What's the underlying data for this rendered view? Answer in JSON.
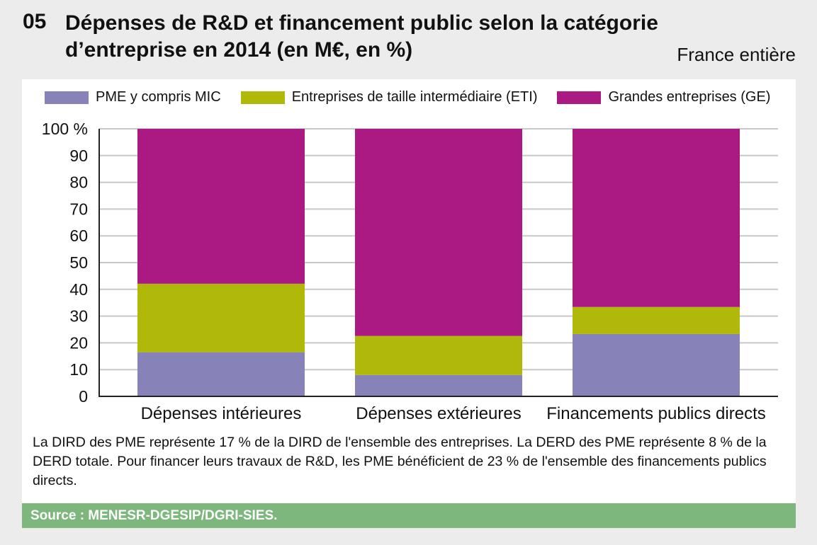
{
  "header": {
    "number": "05",
    "title": "Dépenses de R&D et financement public selon la catégorie d’entreprise en 2014 (en M€, en %)",
    "scope": "France entière"
  },
  "chart_data": {
    "type": "bar",
    "stacked": true,
    "categories": [
      "Dépenses intérieures",
      "Dépenses extérieures",
      "Financements publics directs"
    ],
    "series": [
      {
        "name": "PME y compris MIC",
        "color": "#8782b8",
        "values": [
          16.5,
          8,
          23.3
        ]
      },
      {
        "name": "Entreprises de taille intermédiaire (ETI)",
        "color": "#b0b80a",
        "values": [
          25.6,
          14.6,
          10.1
        ]
      },
      {
        "name": "Grandes entreprises (GE)",
        "color": "#ab1983",
        "values": [
          57.9,
          77.4,
          66.6
        ]
      }
    ],
    "ylim": [
      0,
      100
    ],
    "yticks": [
      "0",
      "10",
      "20",
      "30",
      "40",
      "50",
      "60",
      "70",
      "80",
      "90",
      "100 %"
    ],
    "grid": true,
    "legend": "top"
  },
  "note": "La DIRD des PME représente 17 % de la DIRD de l'ensemble des entreprises. La DERD des PME représente 8 % de la DERD totale. Pour financer leurs travaux de R&D, les PME bénéficient de 23 % de l'ensemble des financements publics directs.",
  "source": "Source : MENESR-DGESIP/DGRI-SIES."
}
